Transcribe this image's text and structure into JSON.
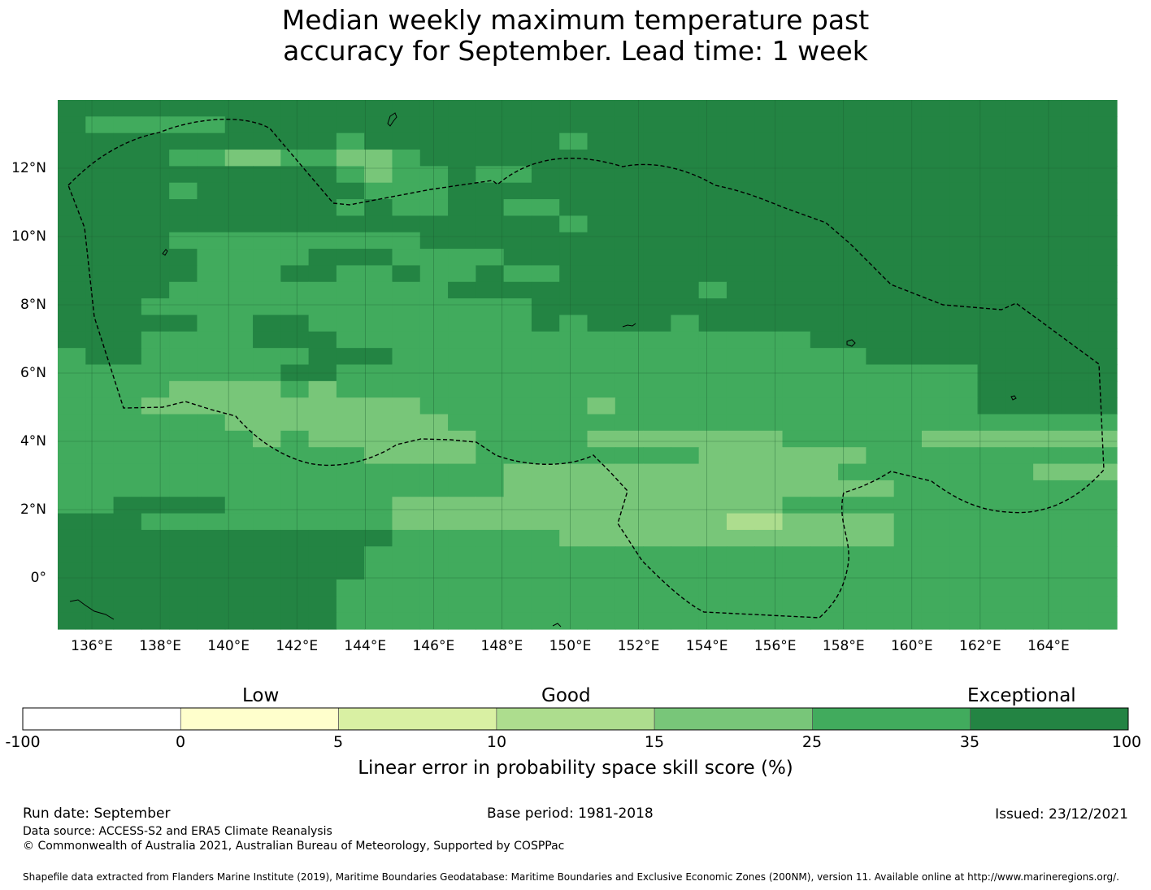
{
  "title": {
    "line1": "Median weekly maximum temperature past",
    "line2": "accuracy for September. Lead time: 1 week"
  },
  "map": {
    "lat_labels": [
      "12°N",
      "10°N",
      "8°N",
      "6°N",
      "4°N",
      "2°N",
      "0°"
    ],
    "lon_labels": [
      "136°E",
      "138°E",
      "140°E",
      "142°E",
      "144°E",
      "146°E",
      "148°E",
      "150°E",
      "152°E",
      "154°E",
      "156°E",
      "158°E",
      "160°E",
      "162°E",
      "164°E"
    ],
    "lat_values": [
      12,
      10,
      8,
      6,
      4,
      2,
      0
    ],
    "lon_values": [
      136,
      138,
      140,
      142,
      144,
      146,
      148,
      150,
      152,
      154,
      156,
      158,
      160,
      162,
      164
    ],
    "lon_range": [
      135,
      166
    ],
    "lat_range": [
      -1.5,
      14
    ],
    "skill_rows_north_to_south": [
      "66666666666666666666666666666666666666",
      "65555566666666666666666666666666666666",
      "66666666665666666656666666666666666666",
      "66665544554456666666666666666666666666",
      "66666666665455655666666666666666666666",
      "66665666666555666666666666666666666666",
      "66666666665655665566666666666666666666",
      "66666666666666666656666666666666666666",
      "66665555555556666666666666666666666666",
      "66666555566655556666666666666666666666",
      "66666555665565565566666666666666666666",
      "66665555555555666666666566666666666666",
      "66655555555555555666666666666666666666",
      "66666556655555555656665666666666666666",
      "66655556665555555555555555566666666666",
      "56655555566655555555555555555666666666",
      "55555555665555555555555555555555566666",
      "55554444545555555555555555555555566666",
      "55544444444445555554555555555555566666",
      "55555544444444555555555555555555555555",
      "55555554544444455554444444555554444444",
      "55555555555444455555555444444555555555",
      "55555555555555554444444444445555555444",
      "55555555555555554444444444444455555555",
      "55666655555544444444444444555555555555",
      "66655555555544444444444433444455555555",
      "66666666666655555544444444444455555555",
      "66666666666555555555555555555555555555",
      "66666666666555555555555555555555555555",
      "66666666665555555555555555555555555555",
      "66666666665555555555555555555555555555",
      "66666666665555555555555555555555555555"
    ]
  },
  "colorbar": {
    "category_labels": [
      "Low",
      "Good",
      "Exceptional"
    ],
    "ticks": [
      "-100",
      "0",
      "5",
      "10",
      "15",
      "25",
      "35",
      "100"
    ],
    "colors": [
      "#ffffff",
      "#ffffcc",
      "#d9f0a3",
      "#addd8e",
      "#78c679",
      "#41ab5d",
      "#238443"
    ],
    "title": "Linear error in probability space skill score (%)"
  },
  "footer": {
    "run_date": "Run date: September",
    "base_period": "Base period: 1981-2018",
    "issued": "Issued: 23/12/2021",
    "data_source": "Data source: ACCESS-S2 and ERA5 Climate Reanalysis",
    "copyright": "© Commonwealth of Australia 2021, Australian Bureau of Meteorology, Supported by COSPPac",
    "shapefile": "Shapefile data extracted from Flanders Marine Institute (2019), Maritime Boundaries Geodatabase: Maritime Boundaries and Exclusive Economic Zones (200NM), version 11. Available online at http://www.marineregions.org/."
  }
}
